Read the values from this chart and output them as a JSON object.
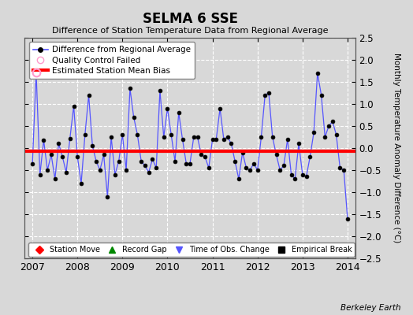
{
  "title": "SELMA 6 SSE",
  "subtitle": "Difference of Station Temperature Data from Regional Average",
  "ylabel": "Monthly Temperature Anomaly Difference (°C)",
  "watermark": "Berkeley Earth",
  "xlim": [
    2006.83,
    2014.17
  ],
  "ylim": [
    -2.5,
    2.5
  ],
  "yticks": [
    -2.5,
    -2,
    -1.5,
    -1,
    -0.5,
    0,
    0.5,
    1,
    1.5,
    2,
    2.5
  ],
  "xticks": [
    2007,
    2008,
    2009,
    2010,
    2011,
    2012,
    2013,
    2014
  ],
  "bias_line_y": -0.07,
  "fig_facecolor": "#d8d8d8",
  "plot_facecolor": "#d8d8d8",
  "grid_color": "#ffffff",
  "line_color": "#5555ff",
  "bias_color": "#ff0000",
  "marker_color": "#000000",
  "qc_fail_x": [
    2007.083
  ],
  "qc_fail_y": [
    1.72
  ],
  "times": [
    2007.0,
    2007.083,
    2007.167,
    2007.25,
    2007.333,
    2007.417,
    2007.5,
    2007.583,
    2007.667,
    2007.75,
    2007.833,
    2007.917,
    2008.0,
    2008.083,
    2008.167,
    2008.25,
    2008.333,
    2008.417,
    2008.5,
    2008.583,
    2008.667,
    2008.75,
    2008.833,
    2008.917,
    2009.0,
    2009.083,
    2009.167,
    2009.25,
    2009.333,
    2009.417,
    2009.5,
    2009.583,
    2009.667,
    2009.75,
    2009.833,
    2009.917,
    2010.0,
    2010.083,
    2010.167,
    2010.25,
    2010.333,
    2010.417,
    2010.5,
    2010.583,
    2010.667,
    2010.75,
    2010.833,
    2010.917,
    2011.0,
    2011.083,
    2011.167,
    2011.25,
    2011.333,
    2011.417,
    2011.5,
    2011.583,
    2011.667,
    2011.75,
    2011.833,
    2011.917,
    2012.0,
    2012.083,
    2012.167,
    2012.25,
    2012.333,
    2012.417,
    2012.5,
    2012.583,
    2012.667,
    2012.75,
    2012.833,
    2012.917,
    2013.0,
    2013.083,
    2013.167,
    2013.25,
    2013.333,
    2013.417,
    2013.5,
    2013.583,
    2013.667,
    2013.75,
    2013.833,
    2013.917,
    2014.0
  ],
  "values": [
    -0.35,
    1.72,
    -0.6,
    0.18,
    -0.5,
    -0.15,
    -0.7,
    0.1,
    -0.2,
    -0.55,
    0.22,
    0.95,
    -0.2,
    -0.8,
    0.3,
    1.2,
    0.05,
    -0.3,
    -0.5,
    -0.15,
    -1.1,
    0.25,
    -0.6,
    -0.3,
    0.3,
    -0.5,
    1.35,
    0.7,
    0.3,
    -0.3,
    -0.4,
    -0.55,
    -0.25,
    -0.45,
    1.3,
    0.25,
    0.9,
    0.3,
    -0.3,
    0.8,
    0.2,
    -0.35,
    -0.35,
    0.25,
    0.25,
    -0.15,
    -0.2,
    -0.45,
    0.2,
    0.2,
    0.9,
    0.2,
    0.25,
    0.1,
    -0.3,
    -0.7,
    -0.1,
    -0.45,
    -0.5,
    -0.35,
    -0.5,
    0.25,
    1.2,
    1.25,
    0.25,
    -0.15,
    -0.5,
    -0.4,
    0.2,
    -0.6,
    -0.7,
    0.1,
    -0.6,
    -0.65,
    -0.2,
    0.35,
    1.7,
    1.2,
    0.25,
    0.5,
    0.6,
    0.3,
    -0.45,
    -0.5,
    -1.6
  ],
  "leg1_labels": [
    "Difference from Regional Average",
    "Quality Control Failed",
    "Estimated Station Mean Bias"
  ],
  "leg2_labels": [
    "Station Move",
    "Record Gap",
    "Time of Obs. Change",
    "Empirical Break"
  ],
  "leg2_colors": [
    "#ff0000",
    "#008800",
    "#5555ff",
    "#000000"
  ],
  "leg2_markers": [
    "D",
    "^",
    "v",
    "s"
  ]
}
